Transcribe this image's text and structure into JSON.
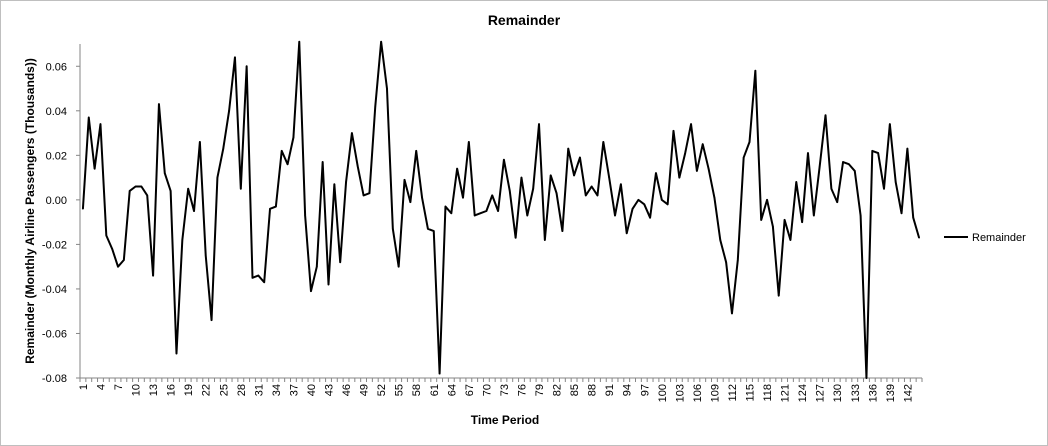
{
  "chart_data": {
    "type": "line",
    "title": "Remainder",
    "xlabel": "Time Period",
    "ylabel": "Remainder (Monthly Airline Passengers (Thousands))",
    "ylim": [
      -0.08,
      0.07
    ],
    "yticks": [
      "0.06",
      "0.04",
      "0.02",
      "0.00",
      "-0.02",
      "-0.04",
      "-0.06",
      "-0.08"
    ],
    "ytick_values": [
      0.06,
      0.04,
      0.02,
      0.0,
      -0.02,
      -0.04,
      -0.06,
      -0.08
    ],
    "xtick_labels": [
      "1",
      "4",
      "7",
      "10",
      "13",
      "16",
      "19",
      "22",
      "25",
      "28",
      "31",
      "34",
      "37",
      "40",
      "43",
      "46",
      "49",
      "52",
      "55",
      "58",
      "61",
      "64",
      "67",
      "70",
      "73",
      "76",
      "79",
      "82",
      "85",
      "88",
      "91",
      "94",
      "97",
      "100",
      "103",
      "106",
      "109",
      "112",
      "115",
      "118",
      "121",
      "124",
      "127",
      "130",
      "133",
      "136",
      "139",
      "142"
    ],
    "x_count": 144,
    "grid": false,
    "legend_position": "right",
    "series": [
      {
        "name": "Remainder",
        "color": "#000000",
        "values": [
          -0.004,
          0.037,
          0.014,
          0.034,
          -0.016,
          -0.022,
          -0.03,
          -0.027,
          0.004,
          0.006,
          0.006,
          0.002,
          -0.034,
          0.043,
          0.012,
          0.004,
          -0.069,
          -0.018,
          0.005,
          -0.005,
          0.026,
          -0.025,
          -0.054,
          0.01,
          0.023,
          0.04,
          0.064,
          0.005,
          0.06,
          -0.035,
          -0.034,
          -0.037,
          -0.004,
          -0.003,
          0.022,
          0.016,
          0.028,
          0.071,
          -0.007,
          -0.041,
          -0.03,
          0.017,
          -0.038,
          0.007,
          -0.028,
          0.008,
          0.03,
          0.015,
          0.002,
          0.003,
          0.042,
          0.071,
          0.05,
          -0.013,
          -0.03,
          0.009,
          -0.001,
          0.022,
          0.001,
          -0.013,
          -0.014,
          -0.078,
          -0.003,
          -0.006,
          0.014,
          0.001,
          0.026,
          -0.007,
          -0.006,
          -0.005,
          0.002,
          -0.005,
          0.018,
          0.004,
          -0.017,
          0.01,
          -0.007,
          0.005,
          0.034,
          -0.018,
          0.011,
          0.003,
          -0.014,
          0.023,
          0.011,
          0.019,
          0.002,
          0.006,
          0.002,
          0.026,
          0.01,
          -0.007,
          0.007,
          -0.015,
          -0.004,
          0.0,
          -0.002,
          -0.008,
          0.012,
          0.0,
          -0.002,
          0.031,
          0.01,
          0.021,
          0.034,
          0.013,
          0.025,
          0.014,
          0.001,
          -0.018,
          -0.028,
          -0.051,
          -0.027,
          0.019,
          0.026,
          0.058,
          -0.009,
          0.0,
          -0.012,
          -0.043,
          -0.009,
          -0.018,
          0.008,
          -0.01,
          0.021,
          -0.007,
          0.015,
          0.038,
          0.005,
          -0.001,
          0.017,
          0.016,
          0.013,
          -0.007,
          -0.08,
          0.022,
          0.021,
          0.005,
          0.034,
          0.008,
          -0.006,
          0.023,
          -0.008,
          -0.017
        ]
      }
    ]
  }
}
